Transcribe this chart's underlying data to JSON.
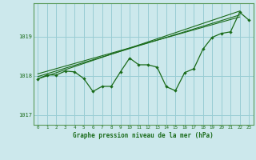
{
  "title": "Graphe pression niveau de la mer (hPa)",
  "background_color": "#cce8ec",
  "grid_color": "#99ccd4",
  "line_color": "#1a6b1a",
  "text_color": "#1a6b1a",
  "spine_color": "#5a9a5a",
  "xlim": [
    -0.5,
    23.5
  ],
  "ylim": [
    1016.75,
    1019.85
  ],
  "yticks": [
    1017,
    1018,
    1019
  ],
  "xticks": [
    0,
    1,
    2,
    3,
    4,
    5,
    6,
    7,
    8,
    9,
    10,
    11,
    12,
    13,
    14,
    15,
    16,
    17,
    18,
    19,
    20,
    21,
    22,
    23
  ],
  "main_line_x": [
    0,
    1,
    2,
    3,
    4,
    5,
    6,
    7,
    8,
    9,
    10,
    11,
    12,
    13,
    14,
    15,
    16,
    17,
    18,
    19,
    20,
    21,
    22,
    23
  ],
  "main_line_y": [
    1017.92,
    1018.02,
    1018.02,
    1018.12,
    1018.1,
    1017.93,
    1017.6,
    1017.73,
    1017.73,
    1018.1,
    1018.45,
    1018.28,
    1018.28,
    1018.22,
    1017.72,
    1017.62,
    1018.08,
    1018.18,
    1018.68,
    1018.98,
    1019.08,
    1019.12,
    1019.62,
    1019.42
  ],
  "trend_lines": [
    {
      "x": [
        0,
        22
      ],
      "y": [
        1017.92,
        1019.65
      ]
    },
    {
      "x": [
        0,
        22
      ],
      "y": [
        1018.05,
        1019.5
      ]
    },
    {
      "x": [
        0,
        22
      ],
      "y": [
        1017.98,
        1019.55
      ]
    }
  ]
}
